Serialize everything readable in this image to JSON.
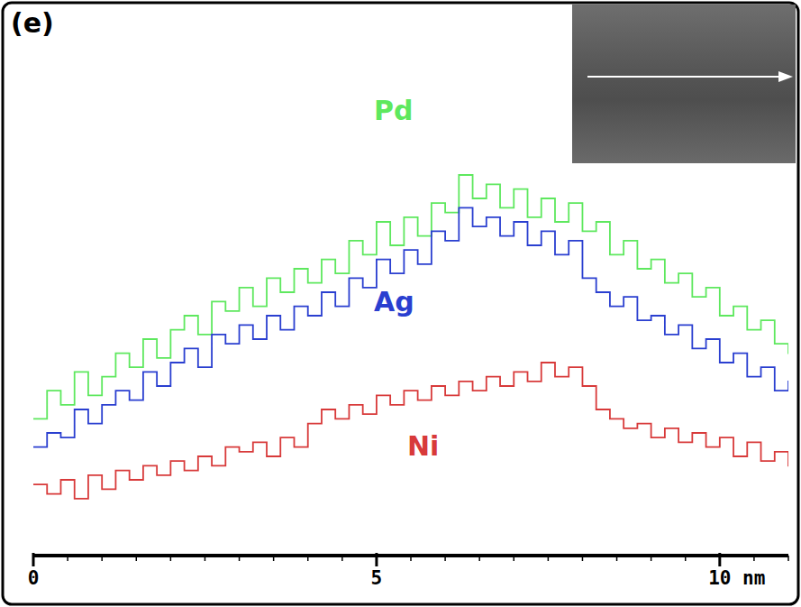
{
  "panel_label": "(e)",
  "chart_data": {
    "type": "line",
    "line_style": "step",
    "tick_labels": "x",
    "x": [
      0,
      0.2,
      0.4,
      0.6,
      0.8,
      1.0,
      1.2,
      1.4,
      1.6,
      1.8,
      2.0,
      2.2,
      2.4,
      2.6,
      2.8,
      3.0,
      3.2,
      3.4,
      3.6,
      3.8,
      4.0,
      4.2,
      4.4,
      4.6,
      4.8,
      5.0,
      5.2,
      5.4,
      5.6,
      5.8,
      6.0,
      6.2,
      6.4,
      6.6,
      6.8,
      7.0,
      7.2,
      7.4,
      7.6,
      7.8,
      8.0,
      8.2,
      8.4,
      8.6,
      8.8,
      9.0,
      9.2,
      9.4,
      9.6,
      9.8,
      10.0,
      10.2,
      10.4,
      10.6,
      10.8,
      11.0
    ],
    "series": [
      {
        "name": "Pd",
        "color": "#5ee85e",
        "values": [
          28,
          34,
          31,
          38,
          33,
          37,
          42,
          39,
          45,
          41,
          47,
          50,
          46,
          53,
          51,
          56,
          52,
          58,
          55,
          60,
          57,
          62,
          59,
          66,
          63,
          70,
          65,
          71,
          67,
          74,
          72,
          80,
          75,
          78,
          73,
          77,
          71,
          75,
          70,
          74,
          68,
          70,
          63,
          66,
          60,
          62,
          57,
          59,
          54,
          56,
          50,
          52,
          47,
          49,
          44,
          42
        ]
      },
      {
        "name": "Ag",
        "color": "#2a3fd0",
        "values": [
          22,
          25,
          24,
          30,
          27,
          31,
          34,
          32,
          38,
          35,
          40,
          43,
          39,
          46,
          44,
          48,
          45,
          50,
          47,
          52,
          50,
          55,
          52,
          58,
          56,
          62,
          59,
          64,
          61,
          68,
          66,
          73,
          69,
          71,
          67,
          70,
          65,
          68,
          63,
          66,
          58,
          55,
          52,
          54,
          49,
          50,
          46,
          48,
          43,
          45,
          40,
          42,
          37,
          39,
          34,
          36
        ]
      },
      {
        "name": "Ni",
        "color": "#d83a3a",
        "values": [
          14,
          12,
          15,
          11,
          16,
          13,
          17,
          15,
          18,
          16,
          19,
          17,
          20,
          18,
          22,
          21,
          23,
          20,
          24,
          22,
          27,
          30,
          28,
          31,
          29,
          33,
          31,
          34,
          32,
          35,
          33,
          36,
          34,
          37,
          35,
          38,
          36,
          40,
          37,
          39,
          35,
          30,
          28,
          26,
          27,
          24,
          26,
          23,
          25,
          22,
          24,
          20,
          23,
          19,
          21,
          18
        ]
      }
    ],
    "xlim": [
      0,
      11
    ],
    "xticks": [
      0,
      5,
      {
        "value": 10,
        "label": "10 nm"
      }
    ],
    "ylim": [
      0,
      100
    ],
    "yticks": []
  }
}
